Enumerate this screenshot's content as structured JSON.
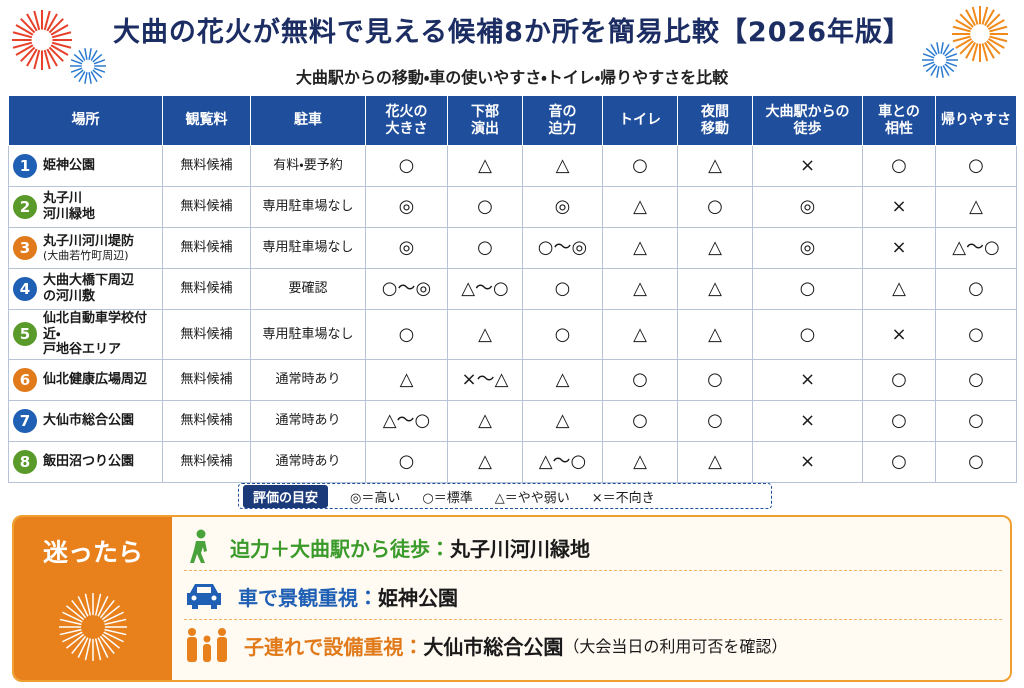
{
  "header": {
    "title": "大曲の花火が無料で見える候補8か所を簡易比較【2026年版】",
    "subtitle": "大曲駅からの移動・車の使いやすさ・トイレ・帰りやすさを比較"
  },
  "table": {
    "columns": [
      "場所",
      "観覧料",
      "駐車",
      "花火の\n大きさ",
      "下部\n演出",
      "音の\n迫力",
      "トイレ",
      "夜間\n移動",
      "大曲駅からの\n徒歩",
      "車との\n相性",
      "帰りやすさ"
    ],
    "rows": [
      {
        "number": 1,
        "place": "姫神公園",
        "fee": "無料候補",
        "parking": "有料・要予約",
        "ratings": [
          "○",
          "△",
          "△",
          "○",
          "△",
          "×",
          "○",
          "○"
        ]
      },
      {
        "number": 2,
        "place": "丸子川\n河川緑地",
        "fee": "無料候補",
        "parking": "専用駐車場なし",
        "ratings": [
          "◎",
          "○",
          "◎",
          "△",
          "○",
          "◎",
          "×",
          "△"
        ]
      },
      {
        "number": 3,
        "place": "丸子川河川堤防",
        "place_note": "(大曲若竹町周辺)",
        "fee": "無料候補",
        "parking": "専用駐車場なし",
        "ratings": [
          "◎",
          "○",
          "○〜◎",
          "△",
          "△",
          "◎",
          "×",
          "△〜○"
        ]
      },
      {
        "number": 4,
        "place": "大曲大橋下周辺\nの河川敷",
        "fee": "無料候補",
        "parking": "要確認",
        "ratings": [
          "○〜◎",
          "△〜○",
          "○",
          "△",
          "△",
          "○",
          "△",
          "○"
        ]
      },
      {
        "number": 5,
        "place": "仙北自動車学校付近・\n戸地谷エリア",
        "fee": "無料候補",
        "parking": "専用駐車場なし",
        "ratings": [
          "○",
          "△",
          "○",
          "△",
          "△",
          "○",
          "×",
          "○"
        ]
      },
      {
        "number": 6,
        "place": "仙北健康広場周辺",
        "fee": "無料候補",
        "parking": "通常時あり",
        "ratings": [
          "△",
          "×〜△",
          "△",
          "○",
          "○",
          "×",
          "○",
          "○"
        ]
      },
      {
        "number": 7,
        "place": "大仙市総合公園",
        "fee": "無料候補",
        "parking": "通常時あり",
        "ratings": [
          "△〜○",
          "△",
          "△",
          "○",
          "○",
          "×",
          "○",
          "○"
        ]
      },
      {
        "number": 8,
        "place": "飯田沼つり公園",
        "fee": "無料候補",
        "parking": "通常時あり",
        "ratings": [
          "○",
          "△",
          "△〜○",
          "△",
          "△",
          "×",
          "○",
          "○"
        ]
      }
    ]
  },
  "legend": {
    "title": "評価の目安",
    "items": [
      "◎＝高い",
      "○＝標準",
      "△＝やや弱い",
      "×＝不向き"
    ]
  },
  "advice": {
    "title": "迷ったら",
    "items": [
      {
        "label": "迫力＋大曲駅から徒歩：",
        "value": "丸子川河川緑地"
      },
      {
        "label": "車で景観重視：",
        "value": "姫神公園"
      },
      {
        "label": "子連れで設備重視：",
        "value": "大仙市総合公園",
        "note": "（大会当日の利用可否を確認）"
      }
    ]
  }
}
